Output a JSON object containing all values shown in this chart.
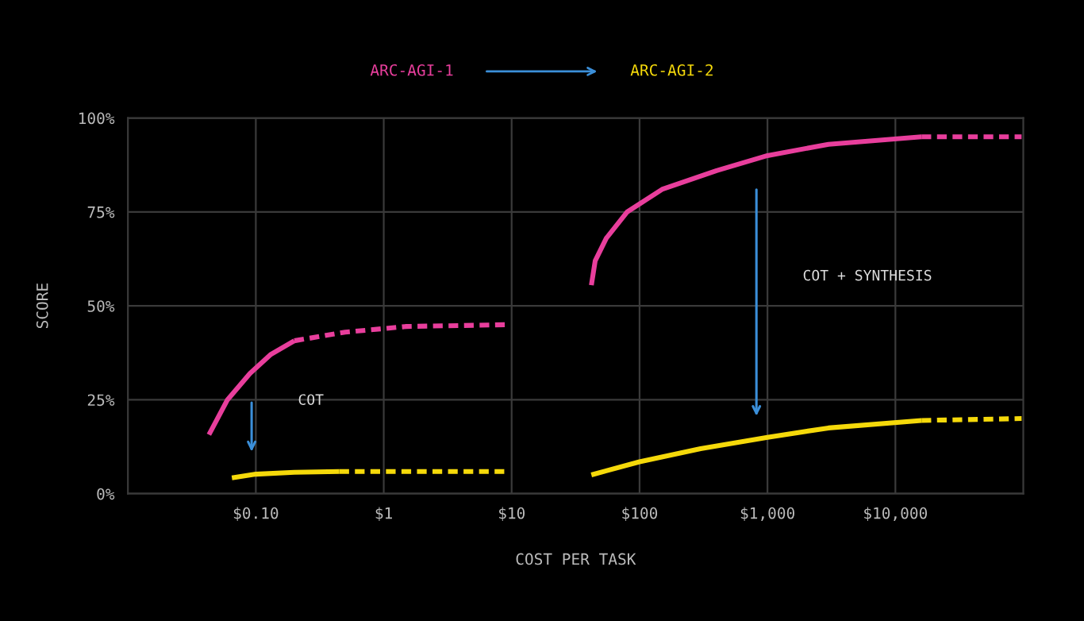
{
  "chart_data": {
    "type": "line",
    "xlabel": "COST PER TASK",
    "ylabel": "SCORE",
    "log": "x",
    "xlim": [
      0.01,
      100000
    ],
    "ylim": [
      0,
      100
    ],
    "xticks": [
      {
        "value": 0.1,
        "label": "$0.10"
      },
      {
        "value": 1,
        "label": "$1"
      },
      {
        "value": 10,
        "label": "$10"
      },
      {
        "value": 100,
        "label": "$100"
      },
      {
        "value": 1000,
        "label": "$1,000"
      },
      {
        "value": 10000,
        "label": "$10,000"
      }
    ],
    "yticks": [
      {
        "value": 0,
        "label": "0%"
      },
      {
        "value": 25,
        "label": "25%"
      },
      {
        "value": 50,
        "label": "50%"
      },
      {
        "value": 75,
        "label": "75%"
      },
      {
        "value": 100,
        "label": "100%"
      }
    ],
    "grid": true,
    "legend": "top",
    "series": [
      {
        "name": "ARC-AGI-1",
        "color": "#e83e9c",
        "line_style": "solid",
        "x": [
          0.043,
          0.06,
          0.09,
          0.13,
          0.2
        ],
        "values": [
          15.7,
          25,
          32,
          37,
          40.7
        ]
      },
      {
        "color": "#e83e9c",
        "line_style": "dashed",
        "x": [
          0.2,
          0.5,
          1.5,
          9.5
        ],
        "values": [
          40.7,
          43,
          44.5,
          45
        ]
      },
      {
        "color": "#e83e9c",
        "line_style": "solid",
        "x": [
          42,
          45,
          55,
          80,
          150,
          400,
          1000,
          3000,
          16000
        ],
        "values": [
          55.5,
          62,
          68,
          75,
          81,
          86,
          90,
          93,
          95
        ]
      },
      {
        "color": "#e83e9c",
        "line_style": "dashed",
        "x": [
          16000,
          97000
        ],
        "values": [
          95,
          95
        ]
      },
      {
        "name": "ARC-AGI-2",
        "color": "#f5d90a",
        "line_style": "solid",
        "x": [
          0.065,
          0.1,
          0.2,
          0.45
        ],
        "values": [
          4.2,
          5.2,
          5.7,
          5.9
        ]
      },
      {
        "color": "#f5d90a",
        "line_style": "dashed",
        "x": [
          0.45,
          9.5
        ],
        "values": [
          5.9,
          5.9
        ]
      },
      {
        "color": "#f5d90a",
        "line_style": "solid",
        "x": [
          42,
          100,
          300,
          1000,
          3000,
          16000
        ],
        "values": [
          5,
          8.5,
          12,
          15,
          17.5,
          19.5
        ]
      },
      {
        "color": "#f5d90a",
        "line_style": "dashed",
        "x": [
          16000,
          97000
        ],
        "values": [
          19.5,
          20
        ]
      }
    ],
    "annotations": [
      "COT",
      "COT + SYNTHESIS"
    ]
  }
}
